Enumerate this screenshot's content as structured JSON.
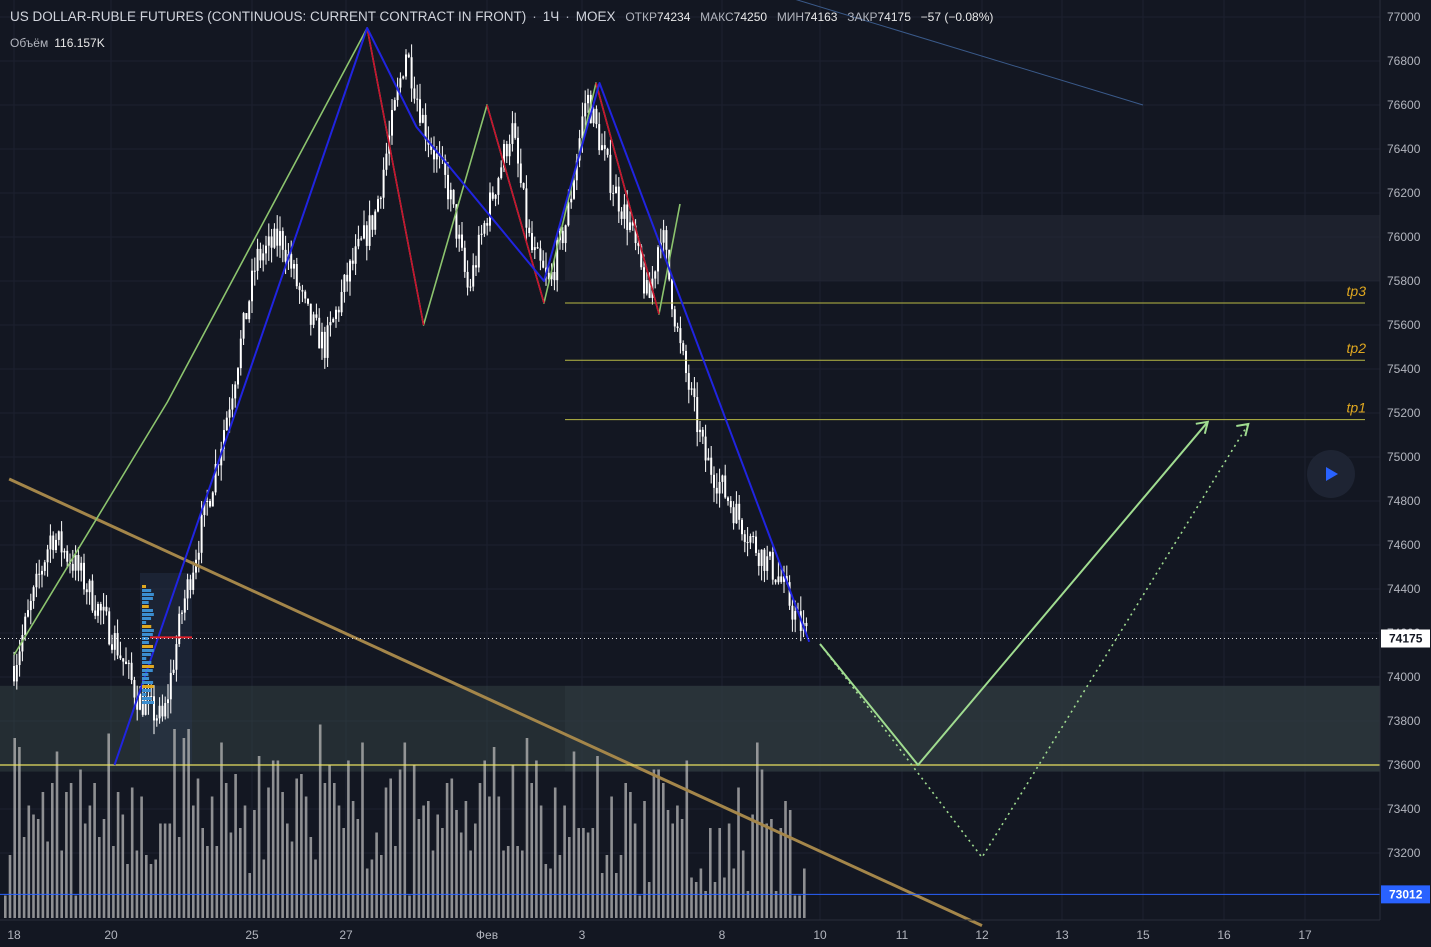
{
  "header": {
    "title": "US DOLLAR-RUBLE FUTURES (CONTINUOUS: CURRENT CONTRACT IN FRONT)",
    "interval": "1Ч",
    "exchange": "MOEX",
    "open_label": "ОТКР",
    "open": "74234",
    "high_label": "МАКС",
    "high": "74250",
    "low_label": "МИН",
    "low": "74163",
    "close_label": "ЗАКР",
    "close": "74175",
    "change": "−57 (−0.08%)"
  },
  "volume_legend": {
    "label": "Объём",
    "value": "116.157K"
  },
  "play_button": {
    "icon": "play-icon",
    "color": "#2962ff"
  },
  "colors": {
    "background": "#131722",
    "candles": "#ffffff",
    "blue_wave": "#2024e0",
    "green_wave": "#8cc46e",
    "red_wave": "#c8102e",
    "trendline": "#a4864a",
    "tp_line": "#b8b844",
    "tp_label": "#e0a820",
    "projection": "#a0dc90"
  },
  "chart_data": {
    "type": "candlestick",
    "y_axis": {
      "range": [
        72880,
        77060
      ],
      "ticks": [
        "77000",
        "76800",
        "76600",
        "76400",
        "76200",
        "76000",
        "75800",
        "75600",
        "75400",
        "75200",
        "75000",
        "74800",
        "74600",
        "74400",
        "74200",
        "74000",
        "73800",
        "73600",
        "73400",
        "73200"
      ]
    },
    "x_axis": {
      "ticks": [
        {
          "label": "18",
          "day": 0
        },
        {
          "label": "20",
          "day": 2
        },
        {
          "label": "25",
          "day": 4
        },
        {
          "label": "27",
          "day": 6
        },
        {
          "label": "Фев",
          "day": 8
        },
        {
          "label": "3",
          "day": 9
        },
        {
          "label": "8",
          "day": 11
        },
        {
          "label": "10",
          "day": 13
        },
        {
          "label": "11",
          "day": 14
        },
        {
          "label": "12",
          "day": 15
        },
        {
          "label": "13",
          "day": 16
        },
        {
          "label": "15",
          "day": 17
        },
        {
          "label": "16",
          "day": 18
        },
        {
          "label": "17",
          "day": 19
        }
      ]
    },
    "last_price": {
      "label": "74175",
      "value": 74175
    },
    "level_price": {
      "label": "73012",
      "value": 73012
    },
    "price_path": [
      [
        0,
        74050
      ],
      [
        0.6,
        74650
      ],
      [
        1.0,
        74500
      ],
      [
        1.6,
        74180
      ],
      [
        2.0,
        73900
      ],
      [
        2.4,
        73800
      ],
      [
        2.7,
        74300
      ],
      [
        3.2,
        74900
      ],
      [
        3.5,
        75300
      ],
      [
        3.9,
        75900
      ],
      [
        4.3,
        76000
      ],
      [
        4.7,
        75650
      ],
      [
        5.0,
        75500
      ],
      [
        5.4,
        75850
      ],
      [
        5.8,
        76100
      ],
      [
        6.3,
        76850
      ],
      [
        6.6,
        76500
      ],
      [
        7.0,
        76200
      ],
      [
        7.3,
        75750
      ],
      [
        7.6,
        76100
      ],
      [
        8.0,
        76500
      ],
      [
        8.3,
        75950
      ],
      [
        8.6,
        75780
      ],
      [
        8.9,
        76100
      ],
      [
        9.2,
        76650
      ],
      [
        9.6,
        76250
      ],
      [
        9.9,
        76050
      ],
      [
        10.2,
        75700
      ],
      [
        10.4,
        76050
      ],
      [
        10.7,
        75500
      ],
      [
        11.1,
        75000
      ],
      [
        11.5,
        74800
      ],
      [
        11.9,
        74600
      ],
      [
        12.3,
        74450
      ],
      [
        12.6,
        74250
      ],
      [
        12.78,
        74175
      ]
    ],
    "volume": [
      5,
      14,
      40,
      38,
      18,
      25,
      23,
      22,
      28,
      17,
      30,
      37,
      15,
      28,
      30,
      5,
      33,
      21,
      25,
      30,
      18,
      22,
      41,
      16,
      28,
      23,
      12,
      29,
      15,
      27,
      14,
      12,
      13,
      21,
      21,
      21,
      42,
      18,
      40,
      42,
      25,
      31,
      20,
      16,
      27,
      16,
      39,
      30,
      19,
      32,
      20,
      25,
      10,
      24,
      36,
      13,
      29,
      35,
      35,
      28,
      21,
      17,
      31,
      32,
      27,
      18,
      13,
      43,
      30,
      34,
      30,
      25,
      20,
      35,
      26,
      22,
      39,
      11,
      13,
      19,
      14,
      29,
      31,
      16,
      33,
      39,
      5,
      34,
      22,
      25,
      26,
      15,
      23,
      20,
      30,
      31,
      24,
      19,
      26,
      15,
      21,
      30,
      35,
      27,
      38,
      27,
      15,
      16,
      34,
      16,
      15,
      40,
      30,
      35,
      25,
      12,
      11,
      29,
      14,
      25,
      18,
      37,
      20,
      20,
      19,
      20,
      36,
      10,
      14,
      27,
      10,
      14,
      30,
      28,
      21,
      5,
      26,
      8,
      33,
      33,
      30,
      24,
      21,
      25,
      22,
      35,
      9,
      8,
      11,
      6,
      20,
      8,
      20,
      9,
      21,
      11,
      29,
      15,
      6,
      23,
      39,
      33,
      21,
      22,
      6,
      20,
      26,
      24,
      5,
      5,
      11
    ],
    "annotations": [
      {
        "label": "tp1",
        "price": 75170
      },
      {
        "label": "tp2",
        "price": 75440
      },
      {
        "label": "tp3",
        "price": 75700
      }
    ],
    "zones": [
      {
        "from": 75800,
        "to": 76100,
        "note": "resistance zone"
      },
      {
        "from": 73570,
        "to": 73960,
        "note": "support zone"
      }
    ],
    "support_line": 73600,
    "blue_wave": [
      [
        2.05,
        73600
      ],
      [
        6.3,
        76950
      ],
      [
        7.0,
        76500
      ],
      [
        8.6,
        75800
      ],
      [
        9.25,
        76700
      ],
      [
        12.78,
        74160
      ]
    ],
    "green_impulse": [
      [
        0,
        74100
      ],
      [
        2.8,
        75250
      ],
      [
        6.3,
        76950
      ],
      [
        7.1,
        75600
      ],
      [
        8.0,
        76600
      ],
      [
        8.6,
        75700
      ],
      [
        9.2,
        76700
      ],
      [
        10.1,
        75650
      ],
      [
        10.4,
        76150
      ]
    ],
    "red_correction": [
      [
        6.3,
        76950
      ],
      [
        7.1,
        75600
      ],
      [
        8.0,
        76600
      ],
      [
        8.6,
        75700
      ],
      [
        9.2,
        76700
      ],
      [
        10.1,
        75650
      ]
    ],
    "trendline": [
      [
        -0.1,
        74900
      ],
      [
        15.0,
        72870
      ]
    ],
    "faint_line": [
      [
        12.5,
        77080
      ],
      [
        17.0,
        76600
      ]
    ],
    "projection_solid": [
      [
        13.0,
        74150
      ],
      [
        14.2,
        73600
      ],
      [
        17.8,
        75160
      ]
    ],
    "projection_dotted": [
      [
        13.0,
        74150
      ],
      [
        15.0,
        73180
      ],
      [
        18.3,
        75150
      ]
    ]
  }
}
